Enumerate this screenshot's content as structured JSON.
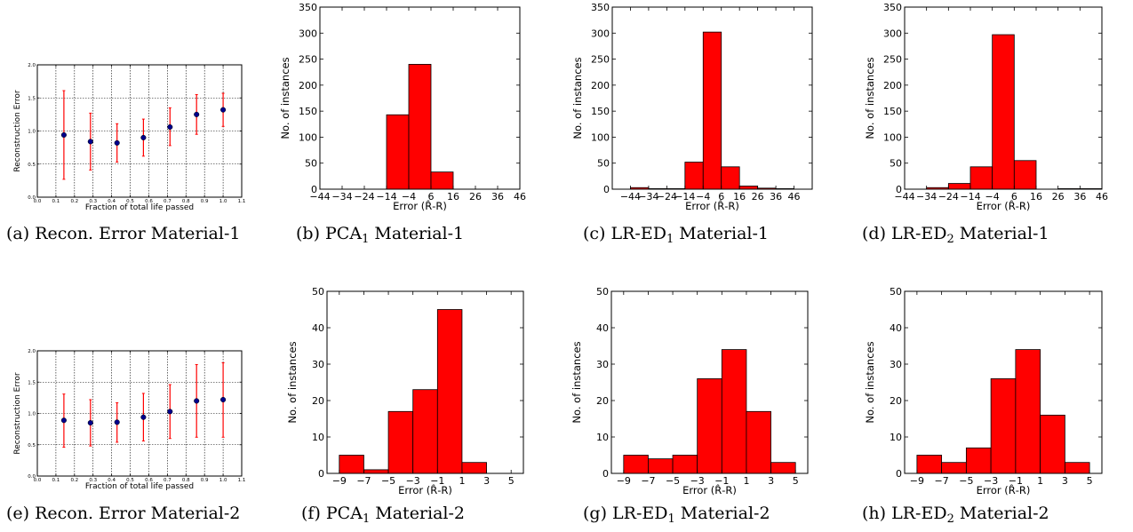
{
  "chart_data": [
    {
      "type": "scatter",
      "variant": "errorbar",
      "caption_prefix": "(a) Recon. Error Material-1",
      "caption_sub": "",
      "caption_suffix": "",
      "xlabel": "Fraction of total life passed",
      "ylabel": "Reconstruction Error",
      "xlim": [
        0.0,
        1.1
      ],
      "ylim": [
        0.0,
        2.0
      ],
      "xticks": [
        0.0,
        0.1,
        0.2,
        0.3,
        0.4,
        0.5,
        0.6,
        0.7,
        0.8,
        0.9,
        1.0,
        1.1
      ],
      "yticks": [
        0.0,
        0.5,
        1.0,
        1.5,
        2.0
      ],
      "grid": true,
      "marker_color": "#00008b",
      "errorbar_color": "#ff0000",
      "x": [
        0.143,
        0.286,
        0.429,
        0.571,
        0.714,
        0.857,
        1.0
      ],
      "y": [
        0.94,
        0.84,
        0.82,
        0.9,
        1.06,
        1.25,
        1.32
      ],
      "yerr_low": [
        0.27,
        0.41,
        0.53,
        0.62,
        0.78,
        0.95,
        1.07
      ],
      "yerr_high": [
        1.61,
        1.27,
        1.11,
        1.18,
        1.35,
        1.55,
        1.57
      ]
    },
    {
      "type": "bar",
      "variant": "histogram",
      "caption_prefix": "(b) PCA",
      "caption_sub": "1",
      "caption_suffix": " Material-1",
      "xlabel": "Error (R̂-R)",
      "ylabel": "No. of instances",
      "xlim": [
        -44,
        46
      ],
      "ylim": [
        0,
        350
      ],
      "xticks": [
        -44,
        -34,
        -24,
        -14,
        -4,
        6,
        16,
        26,
        36,
        46
      ],
      "yticks": [
        0,
        50,
        100,
        150,
        200,
        250,
        300,
        350
      ],
      "bar_color": "#ff0000",
      "bin_edges": [
        -44,
        -34,
        -24,
        -14,
        -4,
        6,
        16,
        26,
        36,
        46
      ],
      "values": [
        0,
        0,
        0,
        143,
        240,
        33,
        0,
        0,
        0
      ]
    },
    {
      "type": "bar",
      "variant": "histogram",
      "caption_prefix": "(c) LR-ED",
      "caption_sub": "1",
      "caption_suffix": " Material-1",
      "xlabel": "Error (R̂-R)",
      "ylabel": "No. of instances",
      "xlim": [
        -54,
        56
      ],
      "ylim": [
        0,
        350
      ],
      "xticks": [
        -44,
        -34,
        -24,
        -14,
        -4,
        6,
        16,
        26,
        36,
        46
      ],
      "yticks": [
        0,
        50,
        100,
        150,
        200,
        250,
        300,
        350
      ],
      "bar_color": "#ff0000",
      "bin_edges": [
        -44,
        -34,
        -24,
        -14,
        -4,
        6,
        16,
        26,
        36,
        46
      ],
      "values": [
        3,
        1,
        1,
        52,
        302,
        43,
        6,
        2,
        1
      ]
    },
    {
      "type": "bar",
      "variant": "histogram",
      "caption_prefix": "(d) LR-ED",
      "caption_sub": "2",
      "caption_suffix": " Material-1",
      "xlabel": "Error (R̂-R)",
      "ylabel": "No. of instances",
      "xlim": [
        -44,
        46
      ],
      "ylim": [
        0,
        350
      ],
      "xticks": [
        -44,
        -34,
        -24,
        -14,
        -4,
        6,
        16,
        26,
        36,
        46
      ],
      "yticks": [
        0,
        50,
        100,
        150,
        200,
        250,
        300,
        350
      ],
      "bar_color": "#ff0000",
      "bin_edges": [
        -44,
        -34,
        -24,
        -14,
        -4,
        6,
        16,
        26,
        36,
        46
      ],
      "values": [
        0,
        3,
        11,
        43,
        297,
        55,
        0,
        1,
        1
      ]
    },
    {
      "type": "scatter",
      "variant": "errorbar",
      "caption_prefix": "(e) Recon. Error Material-2",
      "caption_sub": "",
      "caption_suffix": "",
      "xlabel": "Fraction of total life passed",
      "ylabel": "Reconstruction Error",
      "xlim": [
        0.0,
        1.1
      ],
      "ylim": [
        0.0,
        2.0
      ],
      "xticks": [
        0.0,
        0.1,
        0.2,
        0.3,
        0.4,
        0.5,
        0.6,
        0.7,
        0.8,
        0.9,
        1.0,
        1.1
      ],
      "yticks": [
        0.0,
        0.5,
        1.0,
        1.5,
        2.0
      ],
      "grid": true,
      "marker_color": "#00008b",
      "errorbar_color": "#ff0000",
      "x": [
        0.143,
        0.286,
        0.429,
        0.571,
        0.714,
        0.857,
        1.0
      ],
      "y": [
        0.89,
        0.85,
        0.86,
        0.94,
        1.03,
        1.2,
        1.22
      ],
      "yerr_low": [
        0.46,
        0.48,
        0.54,
        0.56,
        0.6,
        0.62,
        0.62
      ],
      "yerr_high": [
        1.31,
        1.22,
        1.17,
        1.32,
        1.46,
        1.78,
        1.81
      ]
    },
    {
      "type": "bar",
      "variant": "histogram",
      "caption_prefix": "(f) PCA",
      "caption_sub": "1",
      "caption_suffix": " Material-2",
      "xlabel": "Error (R̂-R)",
      "ylabel": "No. of instances",
      "xlim": [
        -10,
        6
      ],
      "ylim": [
        0,
        50
      ],
      "xticks": [
        -9,
        -7,
        -5,
        -3,
        -1,
        1,
        3,
        5
      ],
      "yticks": [
        0,
        10,
        20,
        30,
        40,
        50
      ],
      "bar_color": "#ff0000",
      "bin_edges": [
        -9,
        -7,
        -5,
        -3,
        -1,
        1,
        3
      ],
      "values": [
        5,
        1,
        17,
        23,
        45,
        3
      ]
    },
    {
      "type": "bar",
      "variant": "histogram",
      "caption_prefix": "(g) LR-ED",
      "caption_sub": "1",
      "caption_suffix": " Material-2",
      "xlabel": "Error (R̂-R)",
      "ylabel": "No. of instances",
      "xlim": [
        -10,
        6
      ],
      "ylim": [
        0,
        50
      ],
      "xticks": [
        -9,
        -7,
        -5,
        -3,
        -1,
        1,
        3,
        5
      ],
      "yticks": [
        0,
        10,
        20,
        30,
        40,
        50
      ],
      "bar_color": "#ff0000",
      "bin_edges": [
        -9,
        -7,
        -5,
        -3,
        -1,
        1,
        3,
        5
      ],
      "values": [
        5,
        4,
        5,
        26,
        34,
        17,
        3
      ]
    },
    {
      "type": "bar",
      "variant": "histogram",
      "caption_prefix": "(h) LR-ED",
      "caption_sub": "2",
      "caption_suffix": " Material-2",
      "xlabel": "Error (R̂-R)",
      "ylabel": "No. of instances",
      "xlim": [
        -10,
        6
      ],
      "ylim": [
        0,
        50
      ],
      "xticks": [
        -9,
        -7,
        -5,
        -3,
        -1,
        1,
        3,
        5
      ],
      "yticks": [
        0,
        10,
        20,
        30,
        40,
        50
      ],
      "bar_color": "#ff0000",
      "bin_edges": [
        -9,
        -7,
        -5,
        -3,
        -1,
        1,
        3,
        5
      ],
      "values": [
        5,
        3,
        7,
        26,
        34,
        16,
        3
      ]
    }
  ]
}
